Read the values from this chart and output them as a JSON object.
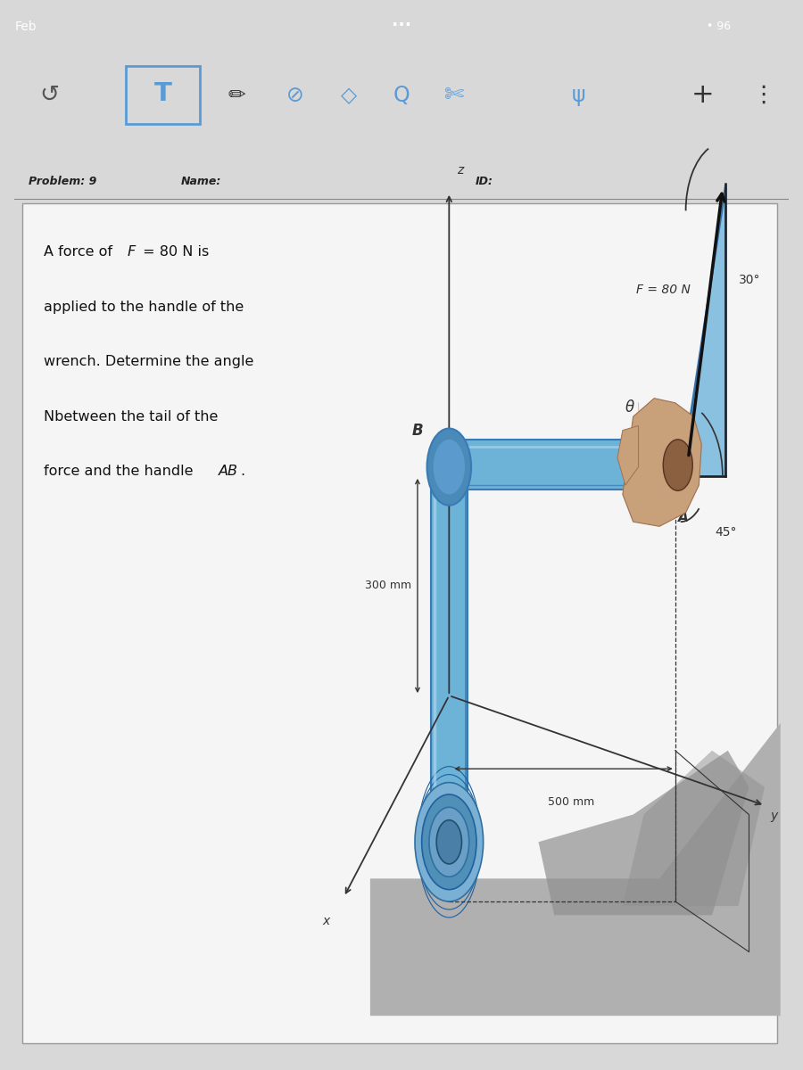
{
  "bg_color": "#d8d8d8",
  "status_bar_bg": "#1a1a1a",
  "toolbar_bg": "#cccccc",
  "page_bg": "#e0e0e0",
  "content_bg": "#f5f5f5",
  "header_text_color": "#222222",
  "body_text_color": "#111111",
  "blue_color": "#5b9bd5",
  "wrench_blue": "#6db3d8",
  "wrench_blue_dark": "#3a7ab5",
  "wrench_blue_light": "#a8d4ee",
  "hand_color": "#c8a07a",
  "hand_dark": "#a07050",
  "shadow_color": "#888888",
  "line_color": "#333333",
  "box_border_color": "#888888",
  "title_bar_text": "Feb",
  "wifi_text": "• 96",
  "problem_label": "Problem: 9",
  "name_label": "Name:",
  "id_label": "ID:",
  "prob_line1": "A force of ",
  "prob_F": "F",
  "prob_line1b": " = 80 N is",
  "prob_line2": "applied to the handle of the",
  "prob_line3": "wrench. Determine the angle",
  "prob_line4": "Nbetween the tail of the",
  "prob_line5a": "force and the handle ",
  "prob_AB": "AB",
  "prob_line5b": ".",
  "label_F": "F = 80 N",
  "label_30": "30°",
  "label_45": "45°",
  "label_theta": "θ",
  "label_B": "B",
  "label_A": "A",
  "label_z": "z",
  "label_x": "x",
  "label_y": "y",
  "label_300mm": "300 mm",
  "label_500mm": "500 mm",
  "fig_bg": "#e8e8e8"
}
